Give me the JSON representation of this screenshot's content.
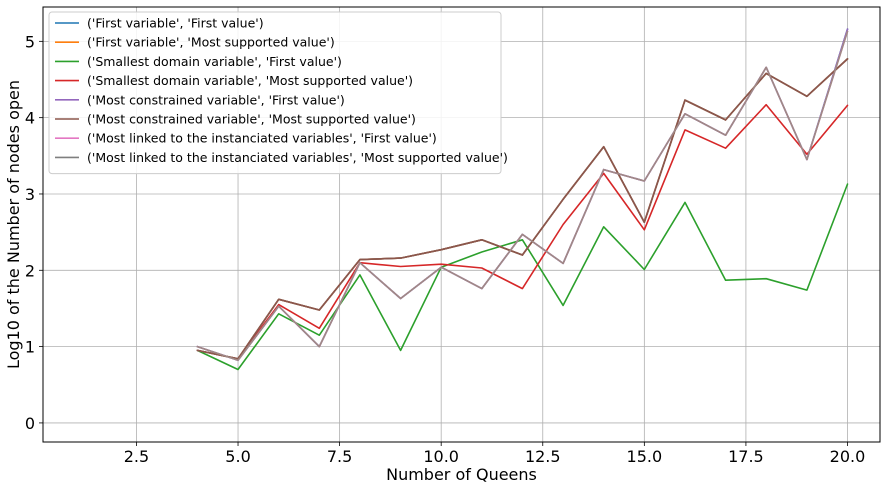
{
  "chart_data": {
    "type": "line",
    "title": "",
    "xlabel": "Number of Queens",
    "ylabel": "Log10 of the Number of nodes open",
    "xlim": [
      0.2,
      20.8
    ],
    "ylim": [
      -0.25,
      5.45
    ],
    "xticks": [
      2.5,
      5.0,
      7.5,
      10.0,
      12.5,
      15.0,
      17.5,
      20.0
    ],
    "xtick_labels": [
      "2.5",
      "5.0",
      "7.5",
      "10.0",
      "12.5",
      "15.0",
      "17.5",
      "20.0"
    ],
    "yticks": [
      0,
      1,
      2,
      3,
      4,
      5
    ],
    "ytick_labels": [
      "0",
      "1",
      "2",
      "3",
      "4",
      "5"
    ],
    "grid": true,
    "legend_position": "top-left",
    "x": [
      4,
      5,
      6,
      7,
      8,
      9,
      10,
      11,
      12,
      13,
      14,
      15,
      16,
      17,
      18,
      19,
      20
    ],
    "series": [
      {
        "name": "('First variable', 'First value')",
        "color": "#1f77b4",
        "values": [
          1.0,
          0.82,
          1.53,
          1.0,
          2.1,
          1.63,
          2.04,
          1.76,
          2.47,
          2.09,
          3.32,
          3.17,
          4.05,
          3.77,
          4.66,
          3.45,
          5.16
        ]
      },
      {
        "name": "('First variable', 'Most supported value')",
        "color": "#ff7f0e",
        "values": [
          0.95,
          0.84,
          1.62,
          1.48,
          2.14,
          2.16,
          2.27,
          2.4,
          2.2,
          2.93,
          3.62,
          2.63,
          4.23,
          3.97,
          4.58,
          4.28,
          4.77
        ]
      },
      {
        "name": "('Smallest domain variable', 'First value')",
        "color": "#2ca02c",
        "values": [
          0.95,
          0.7,
          1.43,
          1.15,
          1.94,
          0.95,
          2.04,
          2.24,
          2.4,
          1.54,
          2.57,
          2.01,
          2.89,
          1.87,
          1.89,
          1.74,
          3.13
        ]
      },
      {
        "name": "('Smallest domain variable', 'Most supported value')",
        "color": "#d62728",
        "values": [
          0.95,
          0.84,
          1.55,
          1.24,
          2.1,
          2.05,
          2.08,
          2.03,
          1.76,
          2.6,
          3.27,
          2.53,
          3.84,
          3.6,
          4.17,
          3.52,
          4.16
        ]
      },
      {
        "name": "('Most constrained variable', 'First value')",
        "color": "#9467bd",
        "values": [
          1.0,
          0.82,
          1.53,
          1.0,
          2.1,
          1.63,
          2.04,
          1.76,
          2.47,
          2.09,
          3.32,
          3.17,
          4.05,
          3.77,
          4.66,
          3.45,
          5.16
        ]
      },
      {
        "name": "('Most constrained variable', 'Most supported value')",
        "color": "#8c564b",
        "values": [
          0.95,
          0.84,
          1.62,
          1.48,
          2.14,
          2.16,
          2.27,
          2.4,
          2.2,
          2.93,
          3.62,
          2.63,
          4.23,
          3.97,
          4.58,
          4.28,
          4.77
        ]
      },
      {
        "name": "('Most linked to the instanciated variables', 'First value')",
        "color": "#e377c2",
        "values": [
          1.0,
          0.82,
          1.53,
          1.0,
          2.1,
          1.63,
          2.04,
          1.76,
          2.47,
          2.09,
          3.32,
          3.17,
          4.05,
          3.77,
          4.66,
          3.45,
          5.13
        ]
      },
      {
        "name": "('Most linked to the instanciated variables', 'Most supported value')",
        "color": "#7f7f7f",
        "values": [
          0.95,
          0.84,
          1.62,
          1.48,
          2.14,
          2.16,
          2.27,
          2.4,
          2.2,
          2.93,
          3.62,
          2.63,
          4.23,
          3.97,
          4.58,
          4.28,
          4.77
        ]
      }
    ],
    "mixed_series": [
      {
        "of": 1,
        "color": "#8c564b"
      },
      {
        "of": 6,
        "color": "#9f8a85"
      }
    ]
  }
}
